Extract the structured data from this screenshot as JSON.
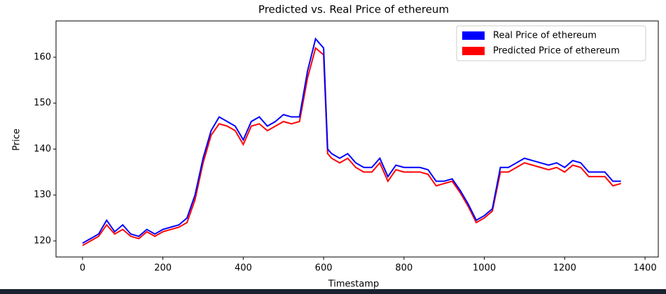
{
  "chart_data": {
    "type": "line",
    "title": "Predicted vs. Real Price of ethereum",
    "xlabel": "Timestamp",
    "ylabel": "Price",
    "x": [
      0,
      20,
      40,
      60,
      80,
      100,
      120,
      140,
      160,
      180,
      200,
      220,
      240,
      260,
      280,
      300,
      320,
      340,
      360,
      380,
      400,
      420,
      440,
      460,
      480,
      500,
      520,
      540,
      560,
      580,
      600,
      610,
      620,
      640,
      660,
      680,
      700,
      720,
      740,
      760,
      780,
      800,
      820,
      840,
      860,
      880,
      900,
      920,
      940,
      960,
      980,
      1000,
      1020,
      1040,
      1060,
      1080,
      1100,
      1120,
      1140,
      1160,
      1180,
      1200,
      1220,
      1240,
      1260,
      1280,
      1300,
      1320,
      1340
    ],
    "series": [
      {
        "name": "Real Price of ethereum",
        "color": "#0000ff",
        "values": [
          119.5,
          120.5,
          121.5,
          124.5,
          122,
          123.5,
          121.5,
          121,
          122.5,
          121.5,
          122.5,
          123,
          123.5,
          125,
          130,
          138,
          144,
          147,
          146,
          145,
          142,
          146,
          147,
          145,
          146,
          147.5,
          147,
          147,
          157,
          164,
          162,
          140,
          139,
          138,
          139,
          137,
          136,
          136,
          138,
          134,
          136.5,
          136,
          136,
          136,
          135.5,
          133,
          133,
          133.5,
          131,
          128,
          124.5,
          125.5,
          127,
          136,
          136,
          137,
          138,
          137.5,
          137,
          136.5,
          137,
          136,
          137.5,
          137,
          135,
          135,
          135,
          133,
          133
        ]
      },
      {
        "name": "Predicted Price of ethereum",
        "color": "#ff0000",
        "values": [
          119,
          120,
          121,
          123.5,
          121.5,
          122.5,
          121,
          120.5,
          122,
          121,
          122,
          122.5,
          123,
          124,
          129,
          137,
          143,
          145.5,
          145,
          144,
          141,
          145,
          145.5,
          144,
          145,
          146,
          145.5,
          146,
          155.5,
          162,
          160.5,
          139,
          138,
          137,
          138,
          136,
          135,
          135,
          137,
          133,
          135.5,
          135,
          135,
          135,
          134.5,
          132,
          132.5,
          133,
          130.5,
          127.5,
          124,
          125,
          126.5,
          135,
          135,
          136,
          137,
          136.5,
          136,
          135.5,
          136,
          135,
          136.5,
          136,
          134,
          134,
          134,
          132,
          132.5
        ]
      }
    ],
    "xlim": [
      -66,
      1433
    ],
    "ylim": [
      116.5,
      167.9
    ],
    "xticks": [
      0,
      200,
      400,
      600,
      800,
      1000,
      1200,
      1400
    ],
    "yticks": [
      120,
      130,
      140,
      150,
      160
    ],
    "grid": false,
    "legend": "upper right"
  }
}
